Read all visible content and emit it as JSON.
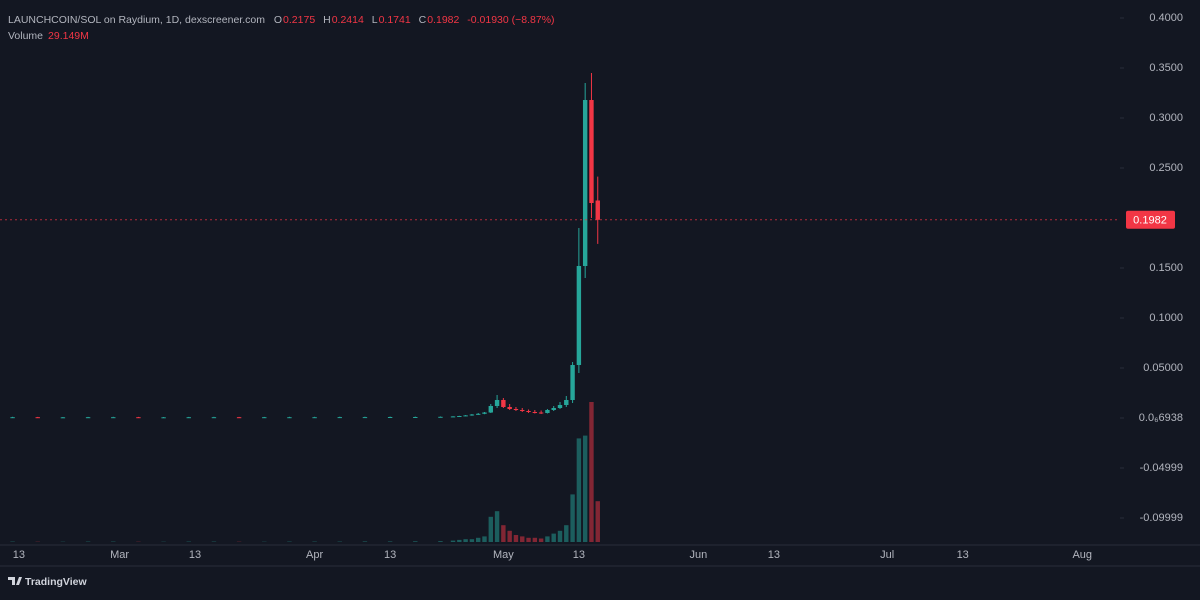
{
  "chart_data": {
    "type": "candlestick",
    "legend_header": {
      "symbol": "LAUNCHCOIN/SOL on Raydium, 1D, dexscreener.com",
      "open_key": "O",
      "high_key": "H",
      "low_key": "L",
      "close_key": "C",
      "change": "-0.01930 (−8.87%)",
      "volume_title": "Volume",
      "volume_label": "29.149M"
    },
    "brand": "TradingView",
    "up_color": "#26a69a",
    "down_color": "#f23645",
    "x": [
      "Feb 12",
      "Feb 16",
      "Feb 20",
      "Feb 24",
      "Feb 28",
      "Mar 4",
      "Mar 8",
      "Mar 12",
      "Mar 16",
      "Mar 20",
      "Mar 24",
      "Mar 28",
      "Apr 1",
      "Apr 5",
      "Apr 9",
      "Apr 13",
      "Apr 17",
      "Apr 21",
      "Apr 23",
      "Apr 24",
      "Apr 25",
      "Apr 26",
      "Apr 27",
      "Apr 28",
      "Apr 29",
      "Apr 30",
      "May 1",
      "May 2",
      "May 3",
      "May 4",
      "May 5",
      "May 6",
      "May 7",
      "May 8",
      "May 9",
      "May 10",
      "May 11",
      "May 12",
      "May 13",
      "May 14",
      "May 15",
      "May 16"
    ],
    "open": [
      0.0008,
      0.0008,
      0.0007,
      0.0007,
      0.0008,
      0.0008,
      0.0007,
      0.0007,
      0.0008,
      0.0008,
      0.0007,
      0.0008,
      0.0008,
      0.0008,
      0.0009,
      0.0009,
      0.001,
      0.001,
      0.0012,
      0.0016,
      0.002,
      0.0026,
      0.0035,
      0.0042,
      0.0055,
      0.012,
      0.018,
      0.011,
      0.009,
      0.008,
      0.007,
      0.006,
      0.0055,
      0.005,
      0.008,
      0.01,
      0.013,
      0.018,
      0.053,
      0.152,
      0.318,
      0.2175
    ],
    "high": [
      0.0012,
      0.0011,
      0.001,
      0.0011,
      0.0012,
      0.0011,
      0.001,
      0.0011,
      0.0012,
      0.0011,
      0.0011,
      0.0012,
      0.0012,
      0.0013,
      0.0013,
      0.0014,
      0.0014,
      0.0015,
      0.0018,
      0.0022,
      0.003,
      0.004,
      0.005,
      0.006,
      0.014,
      0.023,
      0.02,
      0.014,
      0.011,
      0.01,
      0.0085,
      0.008,
      0.0075,
      0.009,
      0.012,
      0.016,
      0.022,
      0.056,
      0.19,
      0.335,
      0.345,
      0.2414
    ],
    "low": [
      0.0005,
      0.0005,
      0.0005,
      0.0005,
      0.0006,
      0.0005,
      0.0005,
      0.0005,
      0.0006,
      0.0006,
      0.0005,
      0.0006,
      0.0006,
      0.0006,
      0.0007,
      0.0007,
      0.0008,
      0.0008,
      0.001,
      0.0014,
      0.0018,
      0.0022,
      0.003,
      0.0038,
      0.005,
      0.01,
      0.01,
      0.008,
      0.007,
      0.006,
      0.005,
      0.0045,
      0.004,
      0.0045,
      0.007,
      0.009,
      0.011,
      0.015,
      0.045,
      0.14,
      0.2,
      0.1741
    ],
    "close": [
      0.0008,
      0.0007,
      0.0007,
      0.0008,
      0.0008,
      0.0007,
      0.0007,
      0.0008,
      0.0008,
      0.0007,
      0.0008,
      0.0008,
      0.0008,
      0.0009,
      0.0009,
      0.001,
      0.001,
      0.0012,
      0.0016,
      0.002,
      0.0026,
      0.0035,
      0.0042,
      0.0055,
      0.012,
      0.018,
      0.011,
      0.009,
      0.008,
      0.007,
      0.006,
      0.0055,
      0.005,
      0.008,
      0.01,
      0.013,
      0.018,
      0.053,
      0.152,
      0.318,
      0.215,
      0.1982
    ],
    "volume": [
      0.3,
      0.2,
      0.2,
      0.3,
      0.3,
      0.2,
      0.2,
      0.3,
      0.3,
      0.2,
      0.2,
      0.3,
      0.3,
      0.3,
      0.4,
      0.4,
      0.5,
      0.6,
      1,
      1.5,
      2,
      2,
      3,
      4,
      18,
      22,
      12,
      8,
      5,
      4,
      3,
      3,
      2.5,
      4,
      6,
      8,
      12,
      34,
      74,
      76,
      100,
      29.149
    ],
    "xlim": [
      "Feb 10",
      "Aug 7"
    ],
    "xticks": [
      {
        "value": "Feb 13",
        "label": "13"
      },
      {
        "value": "Mar 1",
        "label": "Mar"
      },
      {
        "value": "Mar 13",
        "label": "13"
      },
      {
        "value": "Apr 1",
        "label": "Apr"
      },
      {
        "value": "Apr 13",
        "label": "13"
      },
      {
        "value": "May 1",
        "label": "May"
      },
      {
        "value": "May 13",
        "label": "13"
      },
      {
        "value": "Jun 1",
        "label": "Jun"
      },
      {
        "value": "Jun 13",
        "label": "13"
      },
      {
        "value": "Jul 1",
        "label": "Jul"
      },
      {
        "value": "Jul 13",
        "label": "13"
      },
      {
        "value": "Aug 1",
        "label": "Aug"
      }
    ],
    "ylim": [
      -0.127,
      0.418
    ],
    "yticks": [
      {
        "value": 0.4,
        "label": "0.4000"
      },
      {
        "value": 0.35,
        "label": "0.3500"
      },
      {
        "value": 0.3,
        "label": "0.3000"
      },
      {
        "value": 0.25,
        "label": "0.2500"
      },
      {
        "value": 0.15,
        "label": "0.1500"
      },
      {
        "value": 0.1,
        "label": "0.1000"
      },
      {
        "value": 0.05,
        "label": "0.05000"
      },
      {
        "value": 6.938e-07,
        "label": "0.0₆6938"
      },
      -0.04999,
      -0.09999
    ]
  }
}
